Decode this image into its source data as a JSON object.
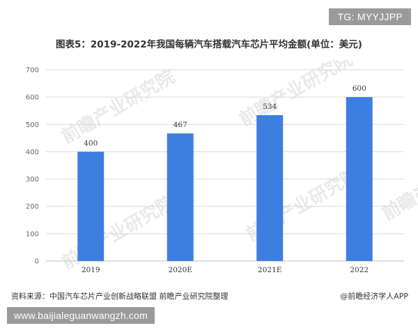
{
  "overlay_top": "TG: MYYJJPP",
  "overlay_bottom": "www.baijialeguanwangzh.com",
  "watermark_text": "前瞻产业研究院",
  "footer": {
    "source": "资料来源：中国汽车芯片产业创新战略联盟 前瞻产业研究院整理",
    "brand": "@前瞻经济学人APP"
  },
  "colors": {
    "bar": "#3d7fe0",
    "grid": "#d9d9d9",
    "axis": "#bfbfbf"
  },
  "chart_data": {
    "type": "bar",
    "title": "图表5：2019-2022年我国每辆汽车搭载汽车芯片平均金额(单位：美元)",
    "categories": [
      "2019",
      "2020E",
      "2021E",
      "2022"
    ],
    "values": [
      400,
      467,
      534,
      600
    ],
    "data_labels": [
      "400",
      "467",
      "534",
      "600"
    ],
    "ylim": [
      0,
      700
    ],
    "yticks": [
      0,
      100,
      200,
      300,
      400,
      500,
      600,
      700
    ],
    "xlabel": "",
    "ylabel": "",
    "grid": true,
    "legend": "none"
  }
}
